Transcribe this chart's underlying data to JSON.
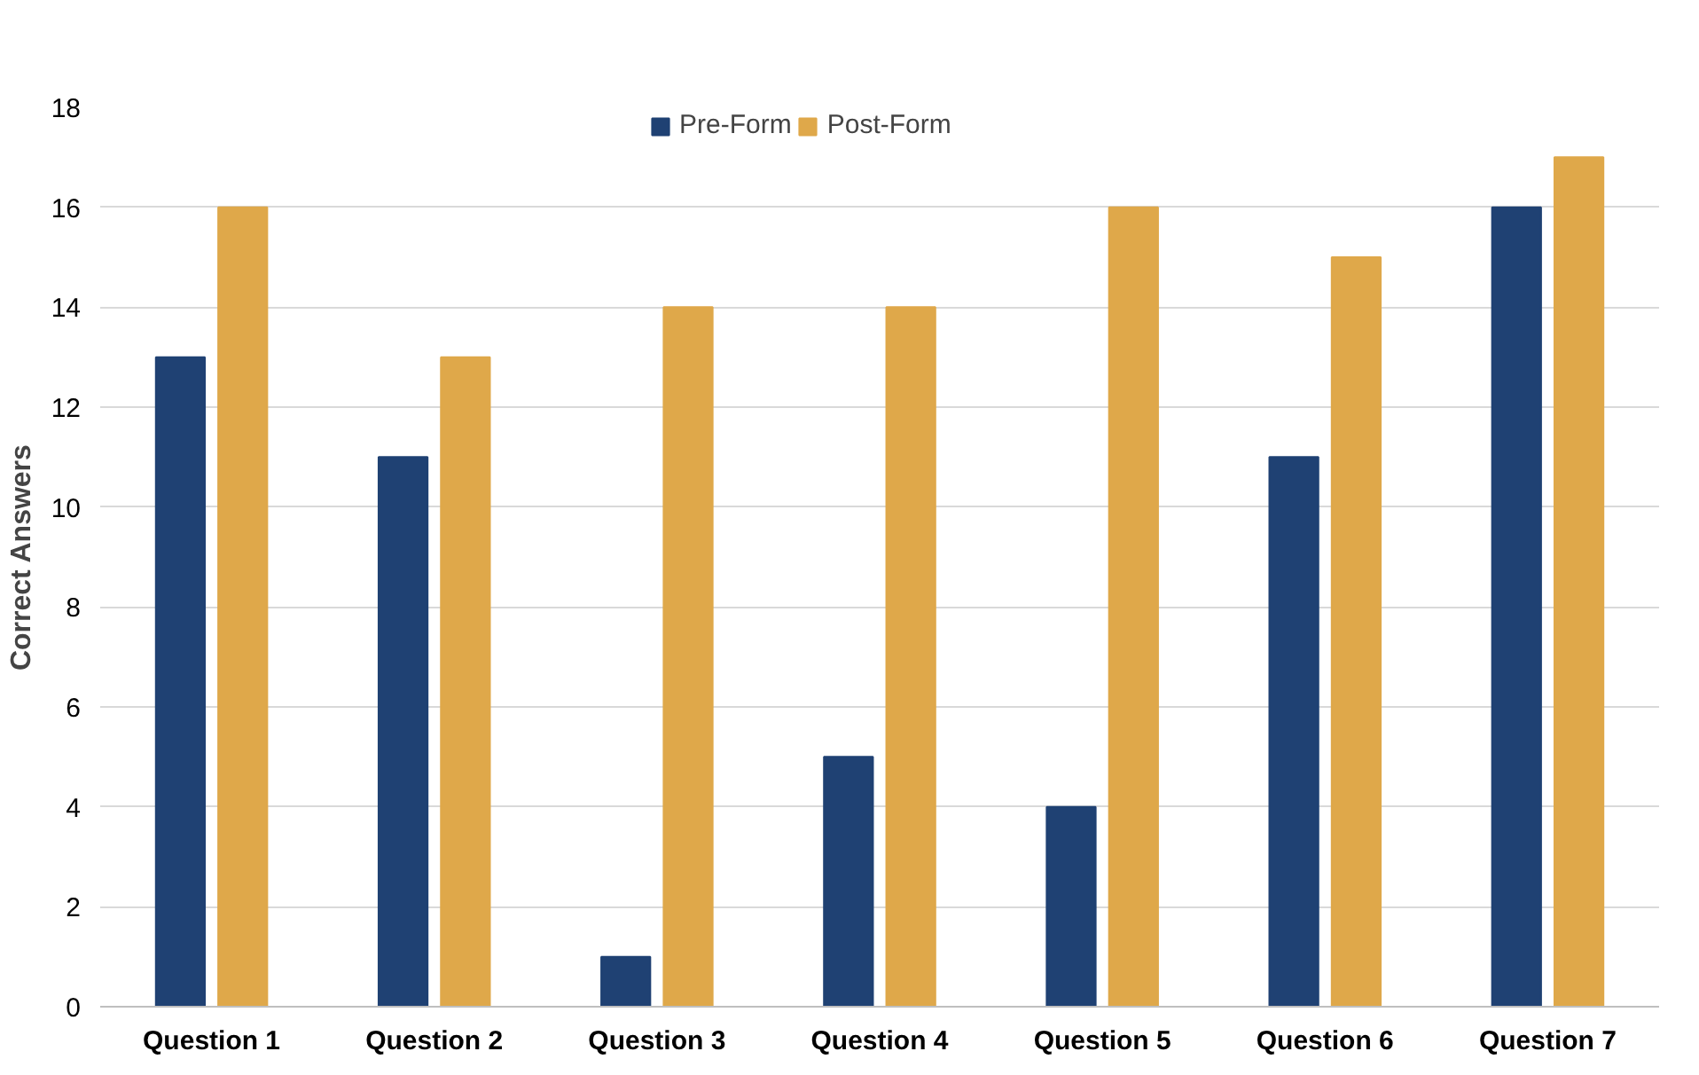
{
  "chart_data": {
    "type": "bar",
    "ylabel": "Correct Answers",
    "categories": [
      "Question 1",
      "Question 2",
      "Question 3",
      "Question 4",
      "Question 5",
      "Question 6",
      "Question 7"
    ],
    "series": [
      {
        "name": "Pre-Form",
        "color": "#1f4173",
        "values": [
          13,
          11,
          1,
          5,
          4,
          11,
          16
        ]
      },
      {
        "name": "Post-Form",
        "color": "#dfa84a",
        "values": [
          16,
          13,
          14,
          14,
          16,
          15,
          17
        ]
      }
    ],
    "ylim": [
      0,
      18
    ],
    "yticks": [
      0,
      2,
      4,
      6,
      8,
      10,
      12,
      14,
      16,
      18
    ],
    "grid": "y",
    "legend": "top"
  }
}
